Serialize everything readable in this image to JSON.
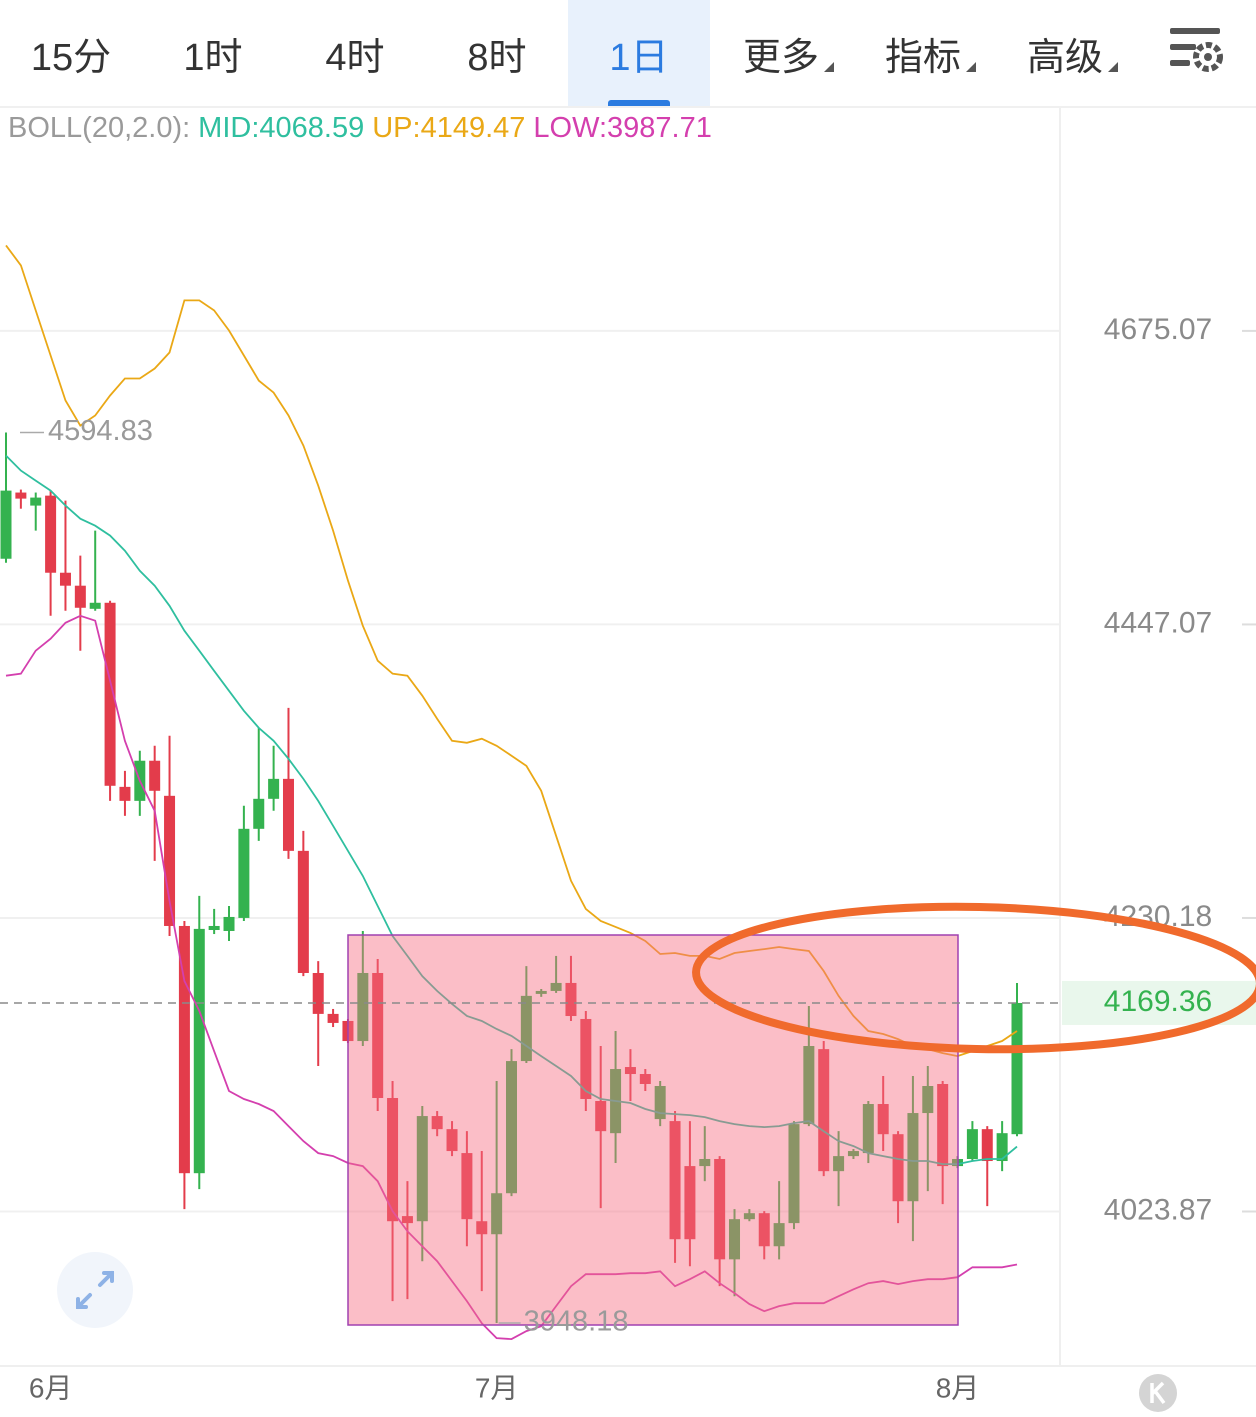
{
  "tabs": [
    {
      "label": "15分"
    },
    {
      "label": "1时"
    },
    {
      "label": "4时"
    },
    {
      "label": "8时"
    },
    {
      "label": "1日",
      "selected": true
    },
    {
      "label": "更多",
      "menu": true
    },
    {
      "label": "指标",
      "menu": true
    },
    {
      "label": "高级",
      "menu": true
    }
  ],
  "chart_data": {
    "type": "candlestick",
    "indicator": "BOLL(20,2.0):",
    "categories": [
      null,
      null,
      null,
      "6月",
      null,
      null,
      null,
      null,
      null,
      null,
      null,
      null,
      null,
      null,
      null,
      null,
      null,
      null,
      null,
      null,
      null,
      null,
      null,
      null,
      null,
      null,
      null,
      null,
      null,
      null,
      null,
      null,
      null,
      "7月",
      null,
      null,
      null,
      null,
      null,
      null,
      null,
      null,
      null,
      null,
      null,
      null,
      null,
      null,
      null,
      null,
      null,
      null,
      null,
      null,
      null,
      null,
      null,
      null,
      null,
      null,
      null,
      null,
      null,
      null,
      "8月",
      null,
      null,
      null,
      null
    ],
    "open": [
      4497.1,
      4548.1,
      4538.0,
      4545.7,
      4486.4,
      4476.5,
      4458.9,
      4463.5,
      4325.7,
      4315.4,
      4345.0,
      4319.1,
      4224.4,
      4050.2,
      4221.5,
      4220.8,
      4230.2,
      4294.9,
      4316.9,
      4331.6,
      4278.8,
      4190.7,
      4161.6,
      4156.6,
      4142.4,
      4190.7,
      4102.4,
      4020.7,
      4017.2,
      4089.8,
      4080.7,
      4064.1,
      4017.2,
      4008.3,
      4036.4,
      4128.3,
      4175.8,
      4177.9,
      4183.6,
      4158.0,
      4100.3,
      4077.9,
      4124.1,
      4119.2,
      4087.7,
      4086.3,
      4055.1,
      4055.1,
      4060.0,
      3991.2,
      4018.6,
      4022.7,
      4000.1,
      4015.9,
      4084.2,
      4136.7,
      4051.6,
      4062.0,
      4064.1,
      4098.2,
      4077.2,
      4030.9,
      4091.9,
      4112.2,
      4055.1,
      4060.0,
      4080.7,
      4058.6,
      4077.2
    ],
    "high": [
      4594.83,
      4550.4,
      4548.1,
      4549.6,
      4541.8,
      4499.5,
      4518.7,
      4465.0,
      4337.5,
      4352.4,
      4356.1,
      4363.5,
      4228.0,
      4246.1,
      4236.7,
      4238.8,
      4311.8,
      4369.4,
      4356.1,
      4384.3,
      4293.4,
      4199.2,
      4165.1,
      4158.0,
      4220.8,
      4200.7,
      4114.3,
      4044.7,
      4096.8,
      4093.3,
      4086.3,
      4079.3,
      4065.5,
      4114.3,
      4136.7,
      4195.6,
      4179.3,
      4202.9,
      4202.9,
      4163.7,
      4138.9,
      4149.5,
      4136.7,
      4122.7,
      4114.3,
      4093.3,
      4086.3,
      4082.8,
      4062.0,
      4025.5,
      4025.5,
      4024.1,
      4044.7,
      4086.3,
      4167.2,
      4142.4,
      4079.3,
      4066.9,
      4100.3,
      4117.8,
      4079.3,
      4117.8,
      4124.8,
      4114.3,
      4062.0,
      4086.3,
      4082.8,
      4086.3,
      4183.6
    ],
    "low": [
      4494.0,
      4535.6,
      4518.7,
      4453.6,
      4457.4,
      4427.2,
      4457.4,
      4315.4,
      4304.4,
      4304.4,
      4271.5,
      4217.2,
      4025.5,
      4039.2,
      4218.6,
      4213.6,
      4228.0,
      4286.1,
      4308.1,
      4273.0,
      4188.5,
      4124.8,
      4152.3,
      4141.0,
      4138.9,
      4093.3,
      3962.9,
      3964.2,
      3989.9,
      4075.8,
      4062.0,
      4000.1,
      3969.6,
      3948.18,
      4034.4,
      4126.9,
      4173.7,
      4176.5,
      4156.6,
      4093.3,
      4026.2,
      4057.2,
      4100.3,
      4107.3,
      4082.8,
      3988.8,
      3986.5,
      4044.7,
      3973.0,
      3966.2,
      4017.2,
      3991.2,
      3991.2,
      4011.8,
      4082.8,
      4048.2,
      4027.5,
      4060.0,
      4057.2,
      4065.5,
      4015.9,
      4003.6,
      4037.8,
      4028.9,
      4053.7,
      4058.6,
      4027.5,
      4051.6,
      4075.8
    ],
    "close": [
      4549.6,
      4543.4,
      4544.2,
      4486.4,
      4476.5,
      4459.7,
      4463.5,
      4326.5,
      4315.4,
      4345.0,
      4322.8,
      4224.4,
      4050.2,
      4222.3,
      4224.4,
      4230.9,
      4294.9,
      4316.9,
      4331.6,
      4278.8,
      4190.7,
      4161.6,
      4155.2,
      4142.4,
      4190.7,
      4102.4,
      4017.2,
      4015.9,
      4089.8,
      4080.7,
      4065.5,
      4018.6,
      4008.3,
      4036.4,
      4128.3,
      4174.4,
      4177.9,
      4183.6,
      4160.1,
      4101.7,
      4079.3,
      4122.7,
      4119.2,
      4112.2,
      4110.8,
      4004.9,
      4004.9,
      4060.0,
      3991.2,
      4018.6,
      4022.7,
      4000.1,
      4015.9,
      4084.2,
      4138.9,
      4051.6,
      4062.0,
      4065.5,
      4098.2,
      4077.2,
      4030.9,
      4091.9,
      4110.8,
      4055.1,
      4060.0,
      4080.7,
      4058.6,
      4077.9,
      4169.36
    ],
    "up_color": "#34b24f",
    "down_color": "#e33c4b",
    "series": [
      {
        "name": "MID",
        "color": "#2fbf9f",
        "values": [
          4576.8,
          4565.1,
          4557.4,
          4549.6,
          4538.0,
          4527.9,
          4522.5,
          4514.9,
          4503.3,
          4487.9,
          4476.5,
          4461.2,
          4442.3,
          4427.2,
          4412.1,
          4397.1,
          4382.1,
          4369.4,
          4359.8,
          4346.4,
          4331.6,
          4315.4,
          4297.1,
          4278.8,
          4260.6,
          4238.8,
          4217.2,
          4202.9,
          4188.5,
          4177.9,
          4168.7,
          4160.1,
          4156.6,
          4150.9,
          4146.0,
          4138.9,
          4131.8,
          4124.8,
          4117.8,
          4107.3,
          4101.7,
          4100.3,
          4098.9,
          4094.7,
          4091.9,
          4091.2,
          4090.5,
          4089.1,
          4086.3,
          4084.2,
          4082.8,
          4082.1,
          4082.8,
          4084.9,
          4086.3,
          4079.3,
          4072.4,
          4068.9,
          4064.1,
          4062.0,
          4060.0,
          4058.6,
          4058.6,
          4056.5,
          4056.5,
          4058.6,
          4060.0,
          4060.0,
          4068.59
        ]
      },
      {
        "name": "UP",
        "color": "#eaa816",
        "values": [
          4743.7,
          4727.5,
          4691.4,
          4655.5,
          4620.0,
          4600.3,
          4608.2,
          4623.9,
          4637.3,
          4637.3,
          4645.2,
          4657.9,
          4699.4,
          4699.4,
          4691.4,
          4675.4,
          4655.5,
          4635.7,
          4626.2,
          4608.2,
          4584.6,
          4553.5,
          4518.7,
          4480.3,
          4446.1,
          4419.7,
          4409.9,
          4408.4,
          4393.4,
          4376.1,
          4359.8,
          4358.3,
          4361.3,
          4356.1,
          4348.7,
          4341.2,
          4322.8,
          4289.8,
          4257.0,
          4236.7,
          4228.0,
          4223.7,
          4219.4,
          4213.6,
          4204.3,
          4205.0,
          4202.9,
          4202.9,
          4200.7,
          4205.0,
          4206.4,
          4207.8,
          4209.3,
          4207.8,
          4206.4,
          4192.1,
          4174.4,
          4160.1,
          4149.5,
          4147.4,
          4143.8,
          4138.9,
          4136.7,
          4133.9,
          4131.8,
          4135.3,
          4138.9,
          4142.4,
          4149.47
        ]
      },
      {
        "name": "LOW",
        "color": "#d43fae",
        "values": [
          4408.4,
          4409.9,
          4427.2,
          4436.3,
          4448.3,
          4453.6,
          4449.9,
          4404.6,
          4359.8,
          4330.2,
          4308.1,
          4242.5,
          4185.0,
          4163.7,
          4135.3,
          4107.3,
          4101.7,
          4098.2,
          4093.3,
          4082.8,
          4072.4,
          4064.1,
          4062.0,
          4057.2,
          4055.1,
          4044.7,
          4024.1,
          4010.4,
          4000.1,
          3989.9,
          3976.4,
          3962.9,
          3948.0,
          3938.0,
          3937.3,
          3942.7,
          3946.0,
          3959.5,
          3973.0,
          3981.1,
          3981.1,
          3981.1,
          3981.8,
          3981.8,
          3983.1,
          3973.0,
          3977.7,
          3983.1,
          3975.0,
          3968.3,
          3960.9,
          3956.1,
          3959.5,
          3961.5,
          3961.5,
          3961.5,
          3966.2,
          3970.9,
          3975.0,
          3976.4,
          3974.4,
          3976.4,
          3977.7,
          3977.7,
          3979.1,
          3985.8,
          3985.8,
          3985.8,
          3987.71
        ]
      }
    ],
    "ylim": [
      3920,
      4856
    ],
    "yticks": [
      4023.87,
      4230.18,
      4447.07,
      4675.07
    ],
    "log_scale": true,
    "grid": true,
    "last_price_line": true
  }
}
